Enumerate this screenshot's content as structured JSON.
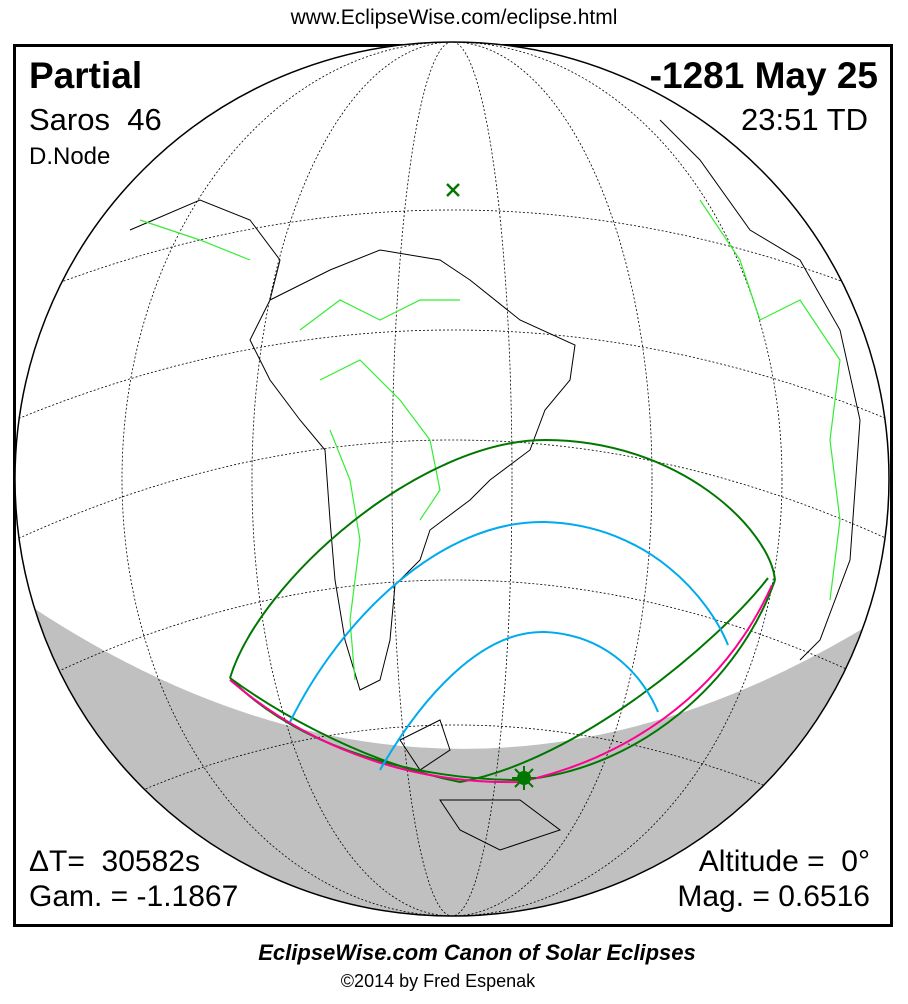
{
  "header": {
    "url": "www.EclipseWise.com/eclipse.html"
  },
  "eclipse": {
    "type": "Partial",
    "saros": "Saros  46",
    "node": "D.Node",
    "date": "-1281 May 25",
    "time": "23:51 TD",
    "delta_t": "ΔT=  30582s",
    "gamma": "Gam. = -1.1867",
    "altitude": "Altitude =  0°",
    "magnitude": "Mag. = 0.6516"
  },
  "footer": {
    "title": "EclipseWise.com Canon of Solar Eclipses",
    "copyright": "©2014 by Fred Espenak"
  },
  "colors": {
    "penumbral_limits": "#007700",
    "max_at_rise_set": "#ff0090",
    "magnitude_curves": "#00aaee",
    "night": "#c0c0c0",
    "borders": "#33ee33"
  },
  "markers": {
    "greatest_eclipse": "star-icon",
    "sub_solar": "x-icon"
  }
}
